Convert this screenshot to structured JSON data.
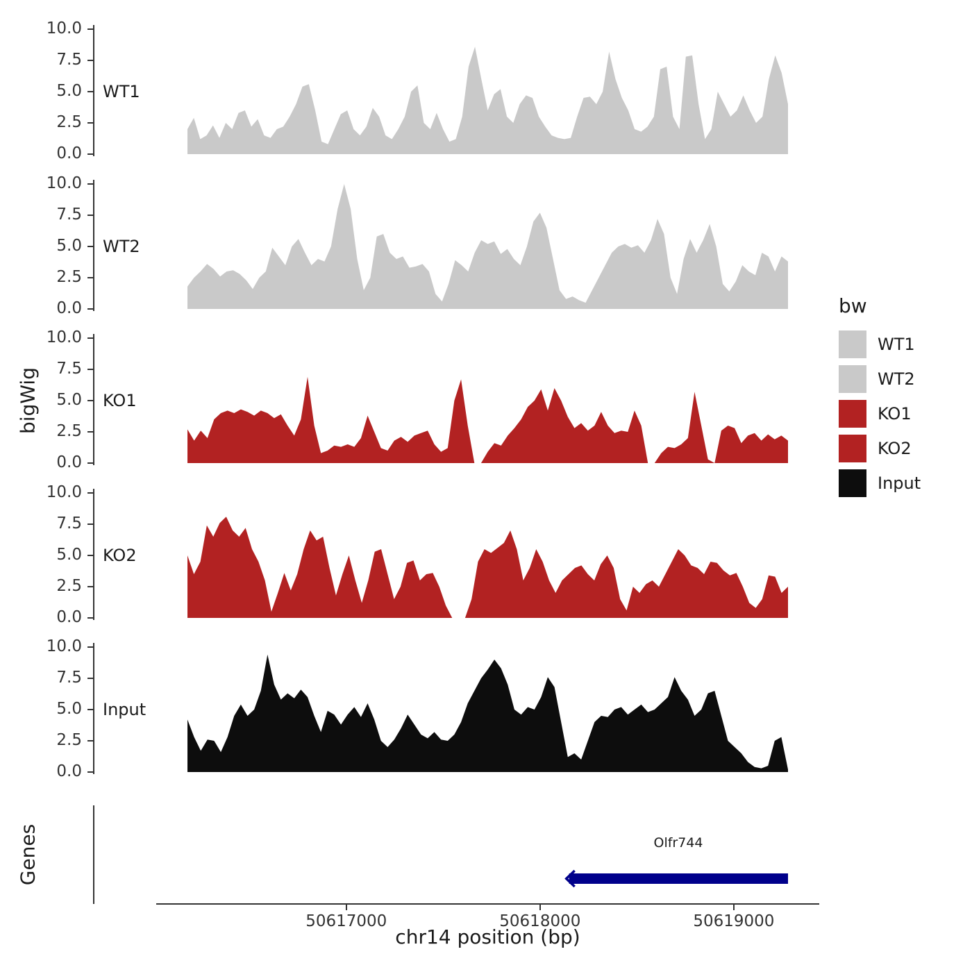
{
  "figure": {
    "y_axis_title": "bigWig",
    "genes_axis_title": "Genes",
    "x_axis_title": "chr14 position (bp)",
    "gene_label": "Olfr744"
  },
  "legend": {
    "title": "bw",
    "entries": [
      {
        "label": "WT1",
        "color": "#c9c9c9"
      },
      {
        "label": "WT2",
        "color": "#c9c9c9"
      },
      {
        "label": "KO1",
        "color": "#b22222"
      },
      {
        "label": "KO2",
        "color": "#b22222"
      },
      {
        "label": "Input",
        "color": "#0d0d0d"
      }
    ]
  },
  "chart_data": {
    "type": "area",
    "title": "",
    "xlabel": "chr14 position (bp)",
    "ylabel": "bigWig",
    "x_range_bp": [
      50616180,
      50619280
    ],
    "x_ticks": [
      50617000,
      50618000,
      50619000
    ],
    "ylim": [
      0,
      10
    ],
    "y_ticks": [
      0,
      2.5,
      5,
      7.5,
      10
    ],
    "y_tick_labels": [
      "0.0",
      "2.5",
      "5.0",
      "7.5",
      "10.0"
    ],
    "grid": false,
    "legend_position": "right",
    "tracks": [
      {
        "name": "WT1",
        "color": "#c9c9c9",
        "values": [
          2.0,
          2.9,
          1.2,
          1.5,
          2.3,
          1.3,
          2.5,
          2.0,
          3.3,
          3.5,
          2.2,
          2.8,
          1.5,
          1.3,
          2.0,
          2.2,
          3.0,
          4.0,
          5.4,
          5.6,
          3.5,
          1.0,
          0.8,
          2.0,
          3.2,
          3.5,
          2.0,
          1.5,
          2.2,
          3.7,
          3.0,
          1.5,
          1.2,
          2.0,
          3.0,
          5.0,
          5.5,
          2.5,
          2.0,
          3.3,
          2.0,
          1.0,
          1.2,
          3.0,
          7.0,
          8.6,
          6.0,
          3.5,
          4.8,
          5.2,
          3.0,
          2.5,
          4.0,
          4.7,
          4.5,
          3.0,
          2.2,
          1.5,
          1.3,
          1.2,
          1.3,
          3.0,
          4.5,
          4.6,
          4.0,
          5.0,
          8.2,
          6.0,
          4.5,
          3.5,
          2.0,
          1.8,
          2.2,
          3.0,
          6.8,
          7.0,
          3.0,
          2.0,
          7.8,
          7.9,
          4.0,
          1.2,
          2.0,
          5.0,
          4.0,
          3.0,
          3.5,
          4.7,
          3.5,
          2.5,
          3.0,
          6.0,
          7.9,
          6.5,
          4.0
        ]
      },
      {
        "name": "WT2",
        "color": "#c9c9c9",
        "values": [
          1.8,
          2.5,
          3.0,
          3.6,
          3.2,
          2.6,
          3.0,
          3.1,
          2.8,
          2.3,
          1.6,
          2.5,
          3.0,
          4.9,
          4.2,
          3.5,
          5.0,
          5.6,
          4.5,
          3.5,
          4.0,
          3.8,
          5.0,
          8.0,
          10.0,
          8.0,
          4.0,
          1.5,
          2.5,
          5.8,
          6.0,
          4.5,
          4.0,
          4.2,
          3.3,
          3.4,
          3.6,
          3.0,
          1.2,
          0.6,
          2.0,
          3.9,
          3.5,
          3.0,
          4.5,
          5.5,
          5.2,
          5.4,
          4.4,
          4.8,
          4.0,
          3.5,
          5.0,
          7.0,
          7.7,
          6.5,
          4.0,
          1.5,
          0.8,
          1.0,
          0.7,
          0.5,
          1.5,
          2.5,
          3.5,
          4.5,
          5.0,
          5.2,
          4.9,
          5.1,
          4.5,
          5.5,
          7.2,
          6.0,
          2.5,
          1.2,
          4.0,
          5.6,
          4.5,
          5.5,
          6.8,
          5.0,
          2.0,
          1.4,
          2.2,
          3.5,
          3.0,
          2.7,
          4.5,
          4.2,
          3.0,
          4.2,
          3.8
        ]
      },
      {
        "name": "KO1",
        "color": "#b22222",
        "values": [
          2.7,
          1.8,
          2.6,
          2.0,
          3.5,
          4.0,
          4.2,
          4.0,
          4.3,
          4.1,
          3.8,
          4.2,
          4.0,
          3.6,
          3.9,
          3.0,
          2.2,
          3.5,
          6.9,
          3.0,
          0.8,
          1.0,
          1.4,
          1.3,
          1.5,
          1.3,
          2.0,
          3.8,
          2.5,
          1.2,
          1.0,
          1.8,
          2.1,
          1.7,
          2.2,
          2.4,
          2.6,
          1.5,
          0.9,
          1.2,
          5.0,
          6.7,
          3.0,
          0.0,
          0.0,
          0.9,
          1.6,
          1.4,
          2.2,
          2.8,
          3.5,
          4.5,
          5.0,
          5.9,
          4.2,
          6.0,
          5.0,
          3.7,
          2.8,
          3.2,
          2.6,
          3.0,
          4.1,
          3.0,
          2.4,
          2.6,
          2.5,
          4.2,
          3.0,
          0.0,
          0.0,
          0.8,
          1.3,
          1.2,
          1.5,
          2.0,
          5.7,
          3.0,
          0.3,
          0.0,
          2.6,
          3.0,
          2.8,
          1.6,
          2.2,
          2.4,
          1.8,
          2.3,
          1.9,
          2.2,
          1.8
        ]
      },
      {
        "name": "KO2",
        "color": "#b22222",
        "values": [
          5.0,
          3.5,
          4.5,
          7.4,
          6.5,
          7.6,
          8.1,
          7.0,
          6.5,
          7.2,
          5.5,
          4.5,
          3.0,
          0.5,
          2.0,
          3.6,
          2.2,
          3.5,
          5.5,
          7.0,
          6.2,
          6.5,
          4.0,
          1.8,
          3.5,
          5.0,
          3.0,
          1.2,
          3.0,
          5.3,
          5.5,
          3.5,
          1.5,
          2.5,
          4.4,
          4.6,
          3.0,
          3.5,
          3.6,
          2.5,
          1.0,
          0.0,
          0.0,
          0.0,
          1.5,
          4.5,
          5.5,
          5.2,
          5.6,
          6.0,
          7.0,
          5.5,
          3.0,
          4.0,
          5.5,
          4.5,
          3.0,
          2.0,
          3.0,
          3.5,
          4.0,
          4.2,
          3.5,
          3.0,
          4.3,
          5.0,
          4.0,
          1.5,
          0.6,
          2.5,
          2.0,
          2.7,
          3.0,
          2.5,
          3.5,
          4.5,
          5.5,
          5.0,
          4.2,
          4.0,
          3.5,
          4.5,
          4.4,
          3.8,
          3.4,
          3.6,
          2.5,
          1.2,
          0.8,
          1.5,
          3.4,
          3.3,
          2.0,
          2.5
        ]
      },
      {
        "name": "Input",
        "color": "#0d0d0d",
        "values": [
          4.2,
          2.8,
          1.7,
          2.6,
          2.5,
          1.6,
          2.8,
          4.5,
          5.4,
          4.5,
          5.0,
          6.5,
          9.4,
          7.0,
          5.8,
          6.3,
          5.9,
          6.6,
          6.0,
          4.5,
          3.2,
          4.9,
          4.6,
          3.8,
          4.6,
          5.2,
          4.4,
          5.5,
          4.2,
          2.5,
          2.0,
          2.6,
          3.5,
          4.6,
          3.8,
          3.0,
          2.7,
          3.2,
          2.6,
          2.5,
          3.0,
          4.0,
          5.5,
          6.5,
          7.5,
          8.2,
          9.0,
          8.3,
          7.0,
          5.0,
          4.6,
          5.2,
          5.0,
          6.0,
          7.6,
          6.8,
          4.0,
          1.2,
          1.5,
          1.0,
          2.5,
          4.0,
          4.5,
          4.4,
          5.0,
          5.2,
          4.6,
          5.0,
          5.4,
          4.8,
          5.0,
          5.5,
          6.0,
          7.6,
          6.5,
          5.8,
          4.5,
          5.0,
          6.3,
          6.5,
          4.5,
          2.5,
          2.0,
          1.5,
          0.8,
          0.4,
          0.3,
          0.5,
          2.5,
          2.8,
          0.2
        ]
      }
    ],
    "gene_track": {
      "label": "Olfr744",
      "start_bp": 50618150,
      "end_bp": 50619280,
      "strand": "-",
      "color": "#00008b"
    }
  }
}
